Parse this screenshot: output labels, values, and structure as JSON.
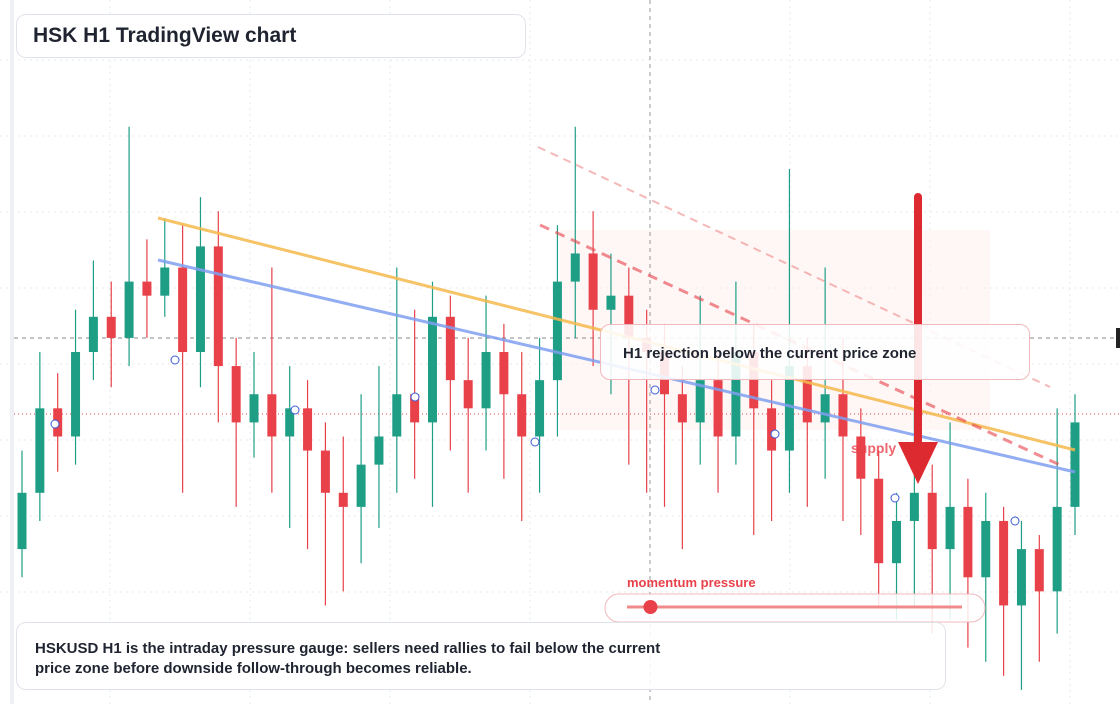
{
  "title": "HSK H1 TradingView chart",
  "chart_data": {
    "type": "candlestick",
    "ylim": [
      0,
      100
    ],
    "up_color": "#1f9e86",
    "down_color": "#e8414a",
    "candles": [
      [
        22,
        36,
        18,
        30
      ],
      [
        30,
        50,
        26,
        42
      ],
      [
        42,
        47,
        33,
        38
      ],
      [
        38,
        56,
        34,
        50
      ],
      [
        50,
        63,
        46,
        55
      ],
      [
        55,
        60,
        45,
        52
      ],
      [
        52,
        82,
        48,
        60
      ],
      [
        60,
        66,
        52,
        58
      ],
      [
        58,
        69,
        55,
        62
      ],
      [
        62,
        68,
        30,
        50
      ],
      [
        50,
        72,
        45,
        65
      ],
      [
        65,
        70,
        40,
        48
      ],
      [
        48,
        52,
        28,
        40
      ],
      [
        40,
        50,
        35,
        44
      ],
      [
        44,
        62,
        30,
        38
      ],
      [
        38,
        48,
        25,
        42
      ],
      [
        42,
        46,
        22,
        36
      ],
      [
        36,
        40,
        14,
        30
      ],
      [
        30,
        38,
        16,
        28
      ],
      [
        28,
        44,
        20,
        34
      ],
      [
        34,
        48,
        25,
        38
      ],
      [
        38,
        62,
        30,
        44
      ],
      [
        44,
        56,
        32,
        40
      ],
      [
        40,
        60,
        28,
        55
      ],
      [
        55,
        58,
        36,
        46
      ],
      [
        46,
        52,
        30,
        42
      ],
      [
        42,
        58,
        36,
        50
      ],
      [
        50,
        54,
        32,
        44
      ],
      [
        44,
        50,
        26,
        38
      ],
      [
        38,
        52,
        30,
        46
      ],
      [
        46,
        68,
        38,
        60
      ],
      [
        60,
        82,
        52,
        64
      ],
      [
        64,
        70,
        48,
        56
      ],
      [
        56,
        64,
        44,
        58
      ],
      [
        58,
        62,
        34,
        52
      ],
      [
        52,
        56,
        30,
        50
      ],
      [
        50,
        54,
        28,
        44
      ],
      [
        44,
        48,
        22,
        40
      ],
      [
        40,
        58,
        34,
        46
      ],
      [
        46,
        50,
        30,
        38
      ],
      [
        38,
        60,
        34,
        50
      ],
      [
        50,
        54,
        24,
        42
      ],
      [
        42,
        46,
        26,
        36
      ],
      [
        36,
        76,
        30,
        48
      ],
      [
        48,
        52,
        28,
        40
      ],
      [
        40,
        62,
        32,
        44
      ],
      [
        44,
        52,
        26,
        38
      ],
      [
        38,
        42,
        24,
        32
      ],
      [
        32,
        36,
        14,
        20
      ],
      [
        20,
        30,
        12,
        26
      ],
      [
        26,
        42,
        14,
        30
      ],
      [
        30,
        34,
        10,
        22
      ],
      [
        22,
        40,
        12,
        28
      ],
      [
        28,
        32,
        8,
        18
      ],
      [
        18,
        30,
        6,
        26
      ],
      [
        26,
        28,
        4,
        14
      ],
      [
        14,
        26,
        2,
        22
      ],
      [
        22,
        24,
        6,
        16
      ],
      [
        16,
        42,
        10,
        28
      ],
      [
        28,
        44,
        24,
        40
      ]
    ]
  },
  "annotation": "H1 rejection below the current price zone",
  "zone_label": "supply",
  "momentum": {
    "label": "momentum pressure",
    "value": 7,
    "range": [
      0,
      100
    ]
  },
  "description": "HSKUSD H1 is the intraday pressure gauge: sellers need rallies to fail below the current price zone before downside follow-through becomes reliable."
}
